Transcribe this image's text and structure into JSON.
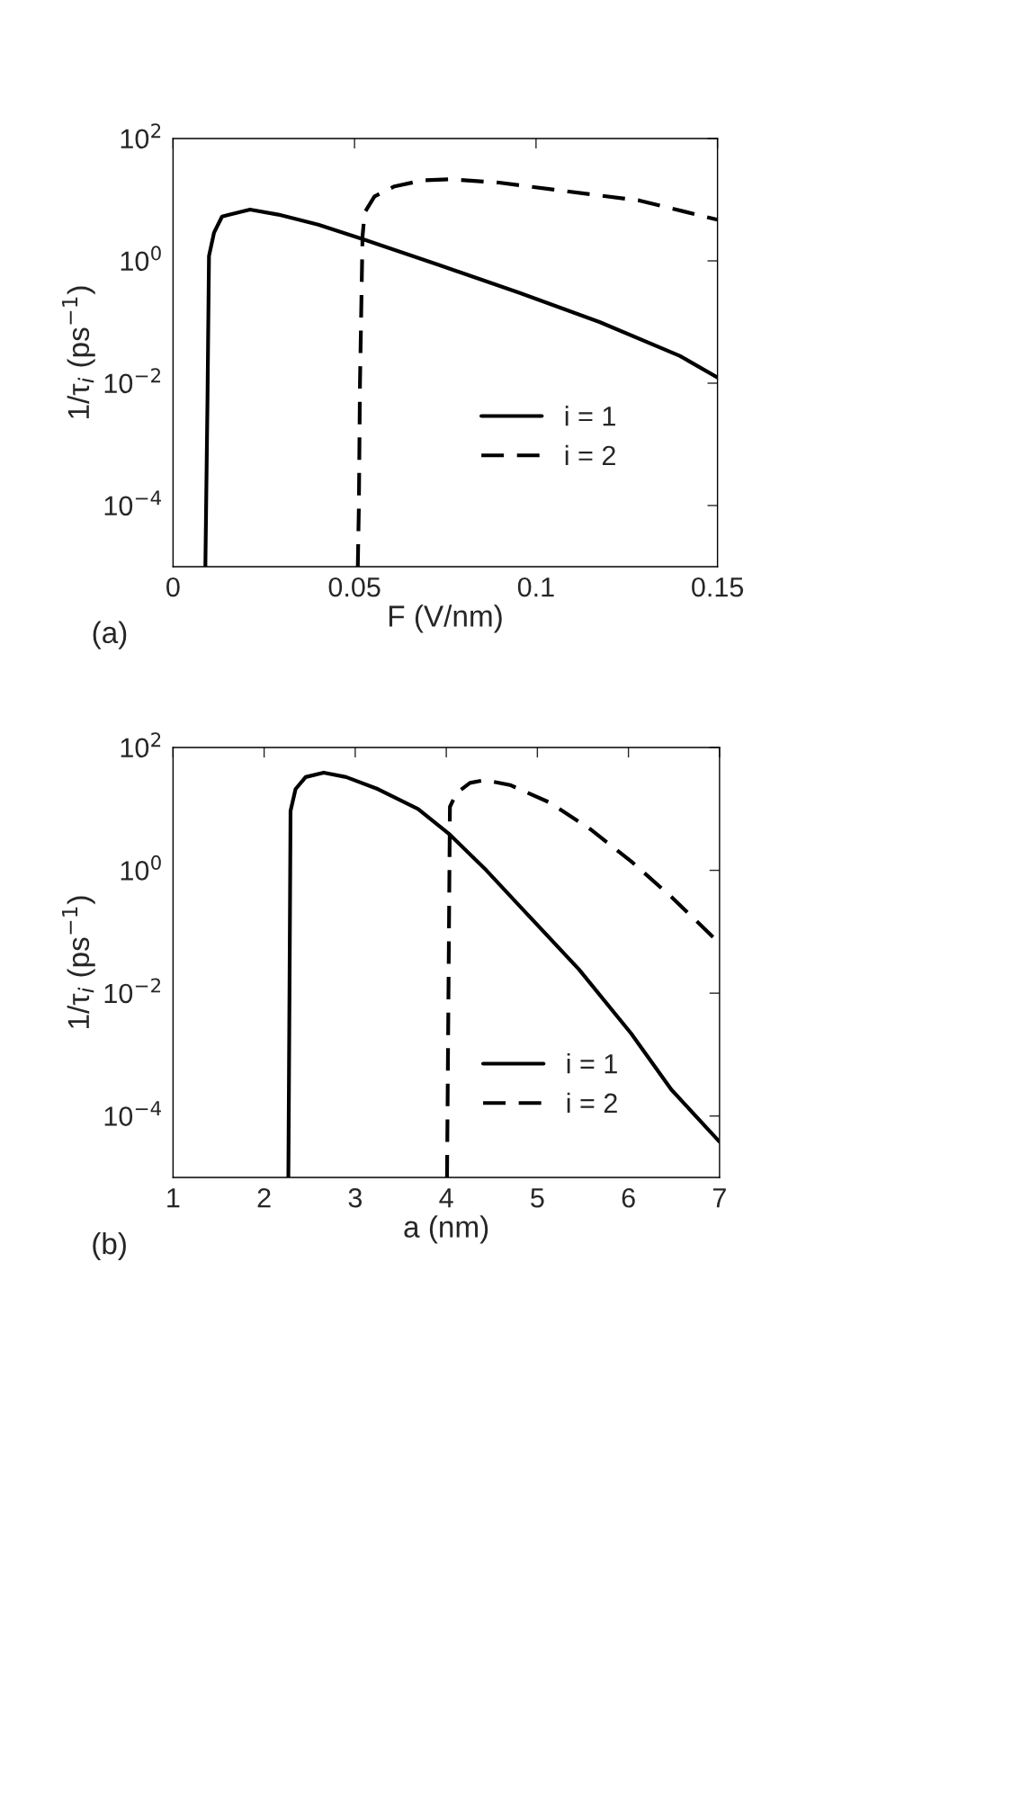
{
  "chart_data": [
    {
      "type": "line",
      "xlabel": "F (V/nm)",
      "ylabel": "1/τ$_{i}$ (ps$^{−1}$)",
      "log": "y",
      "grid": false,
      "legend": "center right",
      "annotations": [
        "(a)"
      ],
      "xlim": [
        0,
        0.15
      ],
      "xticks": [
        0,
        0.05,
        0.1,
        0.15
      ],
      "ylim": [
        1e-05,
        100
      ],
      "yticks": [
        {
          "value": 0.0001,
          "label": "10$^{−4}$"
        },
        {
          "value": 0.01,
          "label": "10$^{−2}$"
        },
        {
          "value": 1,
          "label": "10$^{0}$"
        },
        {
          "value": 100,
          "label": "10$^{2}$"
        }
      ],
      "series": [
        {
          "name": "i = 1",
          "color": "#000000",
          "line_style": "solid",
          "x": [
            0.0089,
            0.0095,
            0.0099,
            0.0113,
            0.0135,
            0.0212,
            0.029,
            0.04,
            0.052,
            0.0732,
            0.0954,
            0.1175,
            0.1396,
            0.15
          ],
          "values": [
            1e-05,
            0.006,
            1.2,
            2.9,
            5.3,
            6.9,
            5.7,
            3.9,
            2.3,
            0.86,
            0.3,
            0.1,
            0.028,
            0.0124
          ]
        },
        {
          "name": "i = 2",
          "color": "#000000",
          "line_style": "dashed",
          "x": [
            0.0509,
            0.0512,
            0.0515,
            0.0522,
            0.0528,
            0.0555,
            0.061,
            0.0688,
            0.0765,
            0.0898,
            0.1064,
            0.1285,
            0.15
          ],
          "values": [
            1e-05,
            0.0001,
            0.01,
            2.5,
            6.2,
            11.3,
            16.5,
            20.7,
            21.6,
            19,
            14.2,
            9.7,
            4.7
          ]
        }
      ]
    },
    {
      "type": "line",
      "xlabel": "a (nm)",
      "ylabel": "1/τ$_{i}$ (ps$^{−1}$)",
      "log": "y",
      "grid": false,
      "legend": "lower right",
      "annotations": [
        "(b)"
      ],
      "xlim": [
        1,
        7
      ],
      "xticks": [
        1,
        2,
        3,
        4,
        5,
        6,
        7
      ],
      "ylim": [
        1e-05,
        100
      ],
      "yticks": [
        {
          "value": 0.0001,
          "label": "10$^{−4}$"
        },
        {
          "value": 0.01,
          "label": "10$^{−2}$"
        },
        {
          "value": 1,
          "label": "10$^{0}$"
        },
        {
          "value": 100,
          "label": "10$^{2}$"
        }
      ],
      "series": [
        {
          "name": "i = 1",
          "color": "#000000",
          "line_style": "solid",
          "x": [
            2.266,
            2.28,
            2.29,
            2.345,
            2.456,
            2.654,
            2.9,
            3.25,
            3.69,
            4.04,
            4.44,
            4.88,
            5.456,
            6.03,
            6.47,
            7
          ],
          "values": [
            1e-05,
            0.0245,
            9.3,
            21,
            33,
            39,
            33,
            21,
            10,
            3.8,
            1,
            0.2,
            0.0245,
            0.0022,
            0.00027,
            3.8e-05
          ]
        },
        {
          "name": "i = 2",
          "color": "#000000",
          "line_style": "dashed",
          "x": [
            4.008,
            4.026,
            4.04,
            4.11,
            4.26,
            4.42,
            4.7,
            5.14,
            5.58,
            6.03,
            6.47,
            7
          ],
          "values": [
            1e-05,
            0.0245,
            10.8,
            18,
            26.5,
            29.5,
            24.5,
            12.6,
            4.7,
            1.4,
            0.37,
            0.065
          ]
        }
      ]
    }
  ]
}
